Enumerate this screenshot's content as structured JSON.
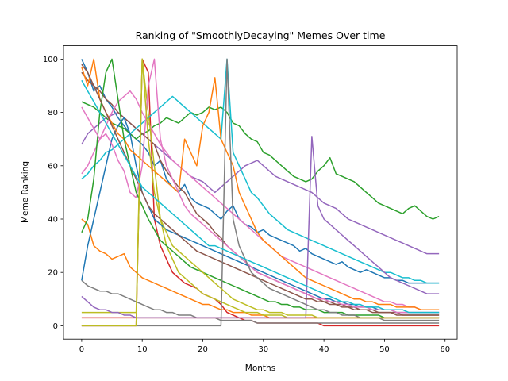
{
  "chart_data": {
    "type": "line",
    "title": "Ranking of \"SmoothlyDecaying\" Memes Over time",
    "xlabel": "Months",
    "ylabel": "Meme Ranking",
    "xlim": [
      -3,
      62
    ],
    "ylim": [
      -5,
      105
    ],
    "xticks": [
      0,
      10,
      20,
      30,
      40,
      50,
      60
    ],
    "yticks": [
      0,
      20,
      40,
      60,
      80,
      100
    ],
    "grid": false,
    "colors": [
      "#1f77b4",
      "#ff7f0e",
      "#2ca02c",
      "#d62728",
      "#9467bd",
      "#8c564b",
      "#e377c2",
      "#7f7f7f",
      "#bcbd22",
      "#17becf"
    ],
    "x": [
      0,
      1,
      2,
      3,
      4,
      5,
      6,
      7,
      8,
      9,
      10,
      11,
      12,
      13,
      14,
      15,
      16,
      17,
      18,
      19,
      20,
      21,
      22,
      23,
      24,
      25,
      26,
      27,
      28,
      29,
      30,
      31,
      32,
      33,
      34,
      35,
      36,
      37,
      38,
      39,
      40,
      41,
      42,
      43,
      44,
      45,
      46,
      47,
      48,
      49,
      50,
      51,
      52,
      53,
      54,
      55,
      56,
      57,
      58,
      59
    ],
    "series": [
      {
        "values": [
          100,
          95,
          88,
          90,
          85,
          82,
          78,
          75,
          72,
          70,
          68,
          65,
          60,
          62,
          55,
          52,
          50,
          53,
          48,
          46,
          45,
          44,
          42,
          40,
          43,
          45,
          40,
          38,
          37,
          35,
          36,
          34,
          33,
          32,
          31,
          30,
          28,
          29,
          27,
          26,
          25,
          24,
          23,
          24,
          22,
          21,
          20,
          21,
          20,
          19,
          18,
          18,
          17,
          17,
          16,
          16,
          16,
          16,
          16,
          16
        ]
      },
      {
        "values": [
          40,
          38,
          30,
          28,
          27,
          25,
          26,
          27,
          22,
          20,
          18,
          17,
          16,
          15,
          14,
          13,
          12,
          11,
          10,
          9,
          8,
          8,
          7,
          6,
          6,
          5,
          5,
          5,
          4,
          4,
          4,
          3,
          3,
          3,
          3,
          3,
          3,
          3,
          3,
          3,
          3,
          3,
          3,
          3,
          3,
          3,
          3,
          3,
          3,
          3,
          3,
          3,
          3,
          3,
          3,
          3,
          3,
          3,
          3,
          3
        ]
      },
      {
        "values": [
          84,
          83,
          82,
          80,
          78,
          76,
          75,
          74,
          72,
          70,
          72,
          73,
          75,
          76,
          78,
          77,
          76,
          78,
          80,
          79,
          80,
          82,
          81,
          82,
          80,
          76,
          75,
          72,
          70,
          69,
          65,
          64,
          62,
          60,
          58,
          56,
          55,
          54,
          55,
          58,
          60,
          63,
          57,
          56,
          55,
          54,
          52,
          50,
          48,
          46,
          45,
          44,
          43,
          42,
          44,
          45,
          43,
          41,
          40,
          41
        ]
      },
      {
        "values": [
          0,
          0,
          0,
          0,
          0,
          0,
          0,
          0,
          0,
          0,
          100,
          95,
          40,
          30,
          25,
          20,
          18,
          16,
          15,
          14,
          12,
          11,
          10,
          8,
          5,
          4,
          3,
          2,
          2,
          1,
          1,
          1,
          1,
          1,
          1,
          1,
          1,
          1,
          1,
          1,
          0,
          0,
          0,
          0,
          0,
          0,
          0,
          0,
          0,
          0,
          0,
          0,
          0,
          0,
          0,
          0,
          0,
          0,
          0,
          0
        ]
      },
      {
        "values": [
          68,
          72,
          74,
          76,
          78,
          79,
          80,
          78,
          76,
          74,
          72,
          70,
          68,
          66,
          64,
          62,
          60,
          58,
          56,
          55,
          54,
          52,
          50,
          52,
          54,
          56,
          58,
          60,
          61,
          62,
          60,
          58,
          56,
          55,
          54,
          53,
          52,
          51,
          50,
          48,
          46,
          45,
          44,
          42,
          40,
          39,
          38,
          37,
          36,
          35,
          34,
          33,
          32,
          31,
          30,
          29,
          28,
          27,
          27,
          27
        ]
      },
      {
        "values": [
          95,
          92,
          90,
          88,
          85,
          83,
          80,
          78,
          76,
          74,
          72,
          70,
          68,
          62,
          58,
          55,
          52,
          50,
          46,
          42,
          40,
          38,
          35,
          33,
          30,
          28,
          26,
          24,
          22,
          20,
          19,
          18,
          17,
          16,
          15,
          14,
          13,
          12,
          11,
          10,
          9,
          9,
          8,
          8,
          7,
          7,
          6,
          6,
          6,
          5,
          5,
          5,
          5,
          4,
          4,
          4,
          4,
          4,
          4,
          4
        ]
      },
      {
        "values": [
          57,
          60,
          65,
          70,
          75,
          80,
          84,
          86,
          88,
          85,
          80,
          76,
          72,
          68,
          65,
          62,
          60,
          58,
          56,
          54,
          52,
          50,
          48,
          46,
          44,
          42,
          40,
          38,
          36,
          34,
          32,
          30,
          28,
          26,
          25,
          24,
          23,
          22,
          21,
          20,
          19,
          18,
          17,
          16,
          15,
          14,
          13,
          12,
          11,
          10,
          9,
          9,
          8,
          8,
          7,
          7,
          6,
          6,
          6,
          6
        ]
      },
      {
        "values": [
          17,
          15,
          14,
          13,
          13,
          12,
          12,
          11,
          10,
          9,
          8,
          7,
          6,
          6,
          5,
          5,
          4,
          4,
          4,
          3,
          3,
          3,
          3,
          2,
          2,
          2,
          2,
          2,
          2,
          1,
          1,
          1,
          1,
          1,
          1,
          1,
          1,
          1,
          1,
          1,
          1,
          1,
          1,
          1,
          1,
          1,
          1,
          1,
          1,
          1,
          1,
          1,
          1,
          1,
          1,
          1,
          1,
          1,
          1,
          1
        ]
      },
      {
        "values": [
          5,
          5,
          5,
          5,
          5,
          5,
          5,
          5,
          5,
          5,
          100,
          80,
          60,
          40,
          30,
          25,
          20,
          18,
          16,
          14,
          12,
          11,
          10,
          9,
          8,
          7,
          6,
          5,
          5,
          5,
          4,
          4,
          4,
          4,
          3,
          3,
          3,
          3,
          3,
          3,
          3,
          3,
          3,
          3,
          3,
          3,
          3,
          3,
          3,
          3,
          3,
          3,
          3,
          3,
          3,
          3,
          3,
          3,
          3,
          3
        ]
      },
      {
        "values": [
          55,
          57,
          60,
          62,
          65,
          66,
          68,
          70,
          72,
          74,
          76,
          78,
          80,
          82,
          84,
          86,
          84,
          82,
          80,
          78,
          76,
          74,
          72,
          70,
          100,
          65,
          60,
          55,
          50,
          48,
          45,
          42,
          40,
          38,
          36,
          35,
          34,
          33,
          32,
          31,
          30,
          29,
          28,
          27,
          26,
          25,
          24,
          23,
          22,
          21,
          20,
          20,
          19,
          18,
          18,
          17,
          17,
          16,
          16,
          16
        ]
      },
      {
        "values": [
          17,
          30,
          40,
          50,
          60,
          70,
          75,
          78,
          72,
          60,
          50,
          45,
          40,
          38,
          36,
          35,
          34,
          33,
          32,
          31,
          30,
          29,
          28,
          27,
          26,
          25,
          24,
          23,
          22,
          21,
          20,
          19,
          18,
          17,
          16,
          15,
          14,
          13,
          12,
          11,
          10,
          10,
          9,
          9,
          8,
          8,
          7,
          7,
          7,
          6,
          6,
          6,
          5,
          5,
          5,
          5,
          5,
          5,
          5,
          5
        ]
      },
      {
        "values": [
          97,
          90,
          100,
          85,
          80,
          76,
          72,
          70,
          66,
          64,
          62,
          60,
          58,
          56,
          54,
          52,
          50,
          70,
          65,
          60,
          75,
          80,
          93,
          70,
          65,
          60,
          50,
          45,
          40,
          35,
          32,
          30,
          28,
          26,
          24,
          22,
          20,
          18,
          17,
          16,
          15,
          14,
          13,
          12,
          11,
          10,
          10,
          9,
          9,
          8,
          8,
          8,
          7,
          7,
          7,
          7,
          6,
          6,
          6,
          6
        ]
      },
      {
        "values": [
          35,
          40,
          55,
          80,
          95,
          100,
          85,
          70,
          60,
          50,
          45,
          40,
          36,
          32,
          30,
          28,
          26,
          24,
          22,
          21,
          20,
          19,
          18,
          17,
          16,
          15,
          14,
          13,
          12,
          11,
          10,
          9,
          9,
          8,
          8,
          7,
          7,
          6,
          6,
          6,
          5,
          5,
          5,
          5,
          4,
          4,
          4,
          4,
          4,
          4,
          3,
          3,
          3,
          3,
          3,
          3,
          3,
          3,
          3,
          3
        ]
      },
      {
        "values": [
          3,
          3,
          3,
          3,
          3,
          3,
          3,
          3,
          3,
          3,
          3,
          3,
          3,
          3,
          3,
          3,
          3,
          3,
          3,
          3,
          3,
          3,
          3,
          3,
          3,
          3,
          3,
          3,
          3,
          3,
          3,
          3,
          3,
          3,
          3,
          3,
          3,
          3,
          3,
          3,
          3,
          3,
          3,
          3,
          3,
          3,
          3,
          3,
          3,
          3,
          3,
          3,
          3,
          3,
          3,
          3,
          3,
          3,
          3,
          3
        ]
      },
      {
        "values": [
          11,
          9,
          7,
          6,
          6,
          5,
          5,
          4,
          4,
          3,
          3,
          3,
          3,
          3,
          3,
          3,
          3,
          3,
          3,
          3,
          3,
          3,
          3,
          3,
          3,
          3,
          3,
          3,
          3,
          3,
          3,
          3,
          3,
          3,
          3,
          3,
          3,
          3,
          71,
          45,
          40,
          38,
          36,
          34,
          32,
          30,
          28,
          26,
          24,
          22,
          20,
          18,
          17,
          16,
          15,
          14,
          13,
          12,
          12,
          12
        ]
      },
      {
        "values": [
          98,
          95,
          90,
          85,
          80,
          75,
          70,
          65,
          60,
          55,
          50,
          45,
          42,
          40,
          38,
          36,
          34,
          32,
          30,
          28,
          27,
          26,
          25,
          24,
          23,
          22,
          21,
          20,
          19,
          18,
          17,
          16,
          15,
          14,
          13,
          12,
          11,
          10,
          10,
          9,
          9,
          8,
          8,
          7,
          7,
          6,
          6,
          6,
          5,
          5,
          5,
          5,
          4,
          4,
          4,
          4,
          4,
          4,
          4,
          4
        ]
      },
      {
        "values": [
          82,
          78,
          74,
          70,
          72,
          68,
          62,
          58,
          50,
          48,
          60,
          90,
          100,
          70,
          60,
          55,
          50,
          45,
          42,
          40,
          38,
          36,
          34,
          32,
          30,
          28,
          26,
          24,
          22,
          20,
          19,
          18,
          17,
          16,
          15,
          14,
          13,
          12,
          11,
          10,
          10,
          9,
          9,
          8,
          8,
          7,
          7,
          7,
          6,
          6,
          6,
          6,
          5,
          5,
          5,
          5,
          5,
          5,
          5,
          5
        ]
      },
      {
        "values": [
          0,
          0,
          0,
          0,
          0,
          0,
          0,
          0,
          0,
          0,
          0,
          0,
          0,
          0,
          0,
          0,
          0,
          0,
          0,
          0,
          0,
          0,
          0,
          0,
          100,
          40,
          30,
          25,
          20,
          18,
          16,
          14,
          13,
          12,
          11,
          10,
          9,
          8,
          7,
          6,
          6,
          5,
          5,
          4,
          4,
          4,
          3,
          3,
          3,
          3,
          2,
          2,
          2,
          2,
          2,
          2,
          2,
          2,
          2,
          2
        ]
      },
      {
        "values": [
          0,
          0,
          0,
          0,
          0,
          0,
          0,
          0,
          0,
          0,
          100,
          70,
          50,
          40,
          35,
          30,
          28,
          26,
          24,
          22,
          20,
          18,
          16,
          14,
          12,
          10,
          9,
          8,
          7,
          6,
          6,
          5,
          5,
          5,
          4,
          4,
          4,
          4,
          4,
          3,
          3,
          3,
          3,
          3,
          3,
          3,
          3,
          3,
          3,
          3,
          3,
          3,
          3,
          3,
          3,
          3,
          3,
          3,
          3,
          3
        ]
      },
      {
        "values": [
          92,
          88,
          84,
          80,
          76,
          72,
          68,
          64,
          60,
          56,
          52,
          50,
          48,
          46,
          44,
          42,
          40,
          38,
          36,
          34,
          32,
          30,
          30,
          29,
          28,
          27,
          26,
          25,
          24,
          23,
          22,
          21,
          20,
          19,
          18,
          17,
          16,
          15,
          14,
          13,
          12,
          11,
          10,
          9,
          9,
          8,
          8,
          7,
          7,
          7,
          6,
          6,
          6,
          6,
          5,
          5,
          5,
          5,
          5,
          5
        ]
      }
    ]
  }
}
